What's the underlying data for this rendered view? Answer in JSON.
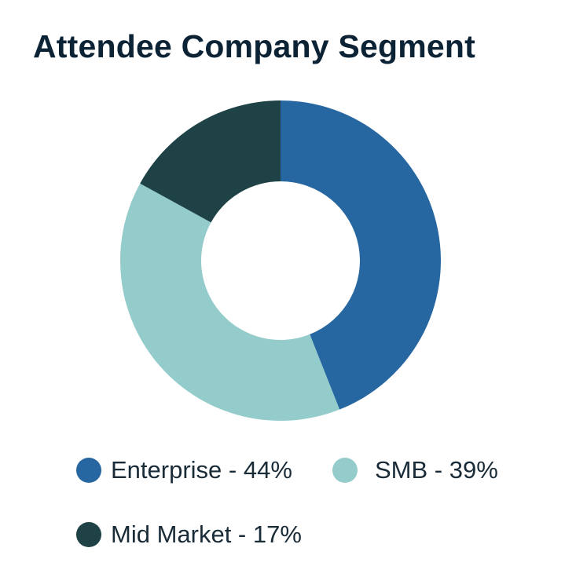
{
  "chart_data": {
    "type": "pie",
    "title": "Attendee Company Segment",
    "donut": true,
    "legend_position": "bottom",
    "slices": [
      {
        "label": "Enterprise",
        "value": 44,
        "legend": "Enterprise - 44%",
        "color": "#2767a1"
      },
      {
        "label": "SMB",
        "value": 39,
        "legend": "SMB - 39%",
        "color": "#94cbcb"
      },
      {
        "label": "Mid Market",
        "value": 17,
        "legend": "Mid Market - 17%",
        "color": "#1e4245"
      }
    ]
  }
}
